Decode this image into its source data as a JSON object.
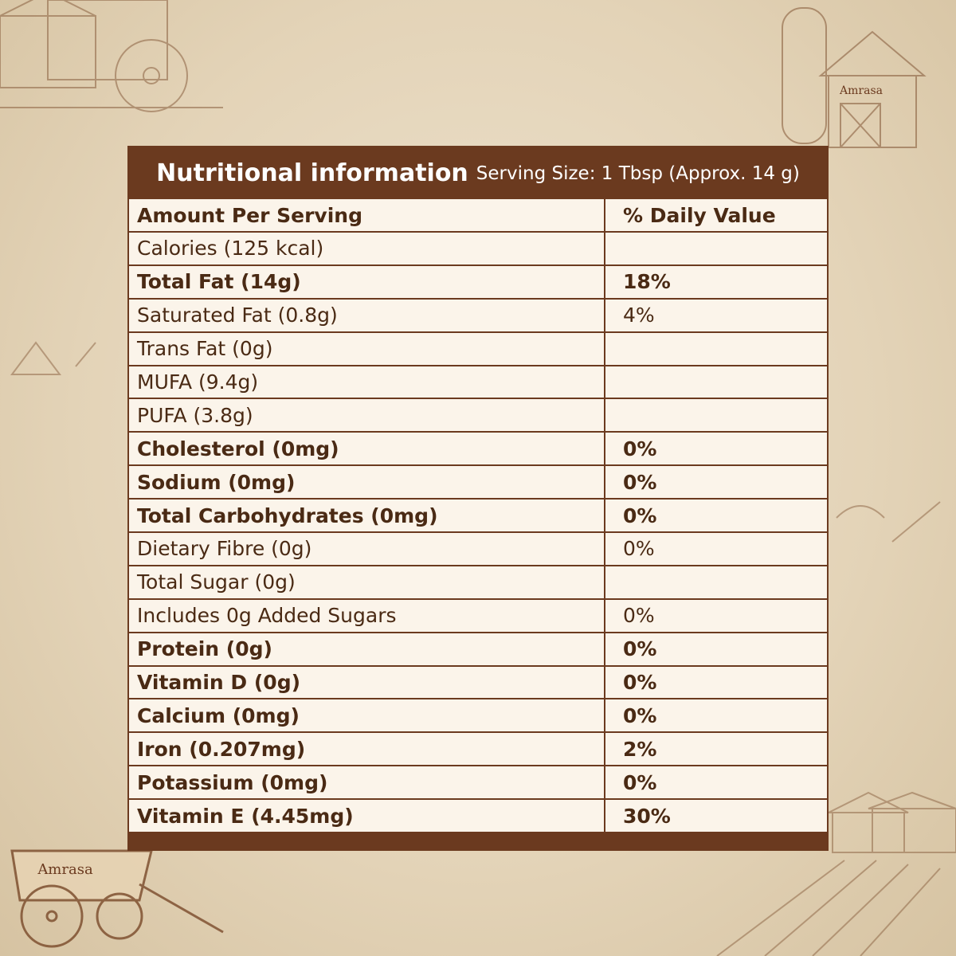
{
  "header": {
    "title": "Nutritional information",
    "serving_size": "Serving Size: 1 Tbsp (Approx. 14 g)"
  },
  "table": {
    "columns": [
      "Amount Per Serving",
      "% Daily Value"
    ],
    "rows": [
      {
        "name": "Calories (125 kcal)",
        "daily_value": null,
        "bold": false
      },
      {
        "name": "Total Fat (14g)",
        "daily_value": "18%",
        "bold": true
      },
      {
        "name": "Saturated Fat (0.8g)",
        "daily_value": "4%",
        "bold": false
      },
      {
        "name": "Trans Fat (0g)",
        "daily_value": null,
        "bold": false
      },
      {
        "name": "MUFA (9.4g)",
        "daily_value": null,
        "bold": false
      },
      {
        "name": "PUFA (3.8g)",
        "daily_value": null,
        "bold": false
      },
      {
        "name": "Cholesterol (0mg)",
        "daily_value": "0%",
        "bold": true
      },
      {
        "name": "Sodium (0mg)",
        "daily_value": "0%",
        "bold": true
      },
      {
        "name": "Total Carbohydrates (0mg)",
        "daily_value": "0%",
        "bold": true
      },
      {
        "name": "Dietary Fibre (0g)",
        "daily_value": "0%",
        "bold": false
      },
      {
        "name": "Total Sugar (0g)",
        "daily_value": null,
        "bold": false
      },
      {
        "name": "Includes 0g Added Sugars",
        "daily_value": "0%",
        "bold": false
      },
      {
        "name": "Protein (0g)",
        "daily_value": "0%",
        "bold": true
      },
      {
        "name": "Vitamin D (0g)",
        "daily_value": "0%",
        "bold": true
      },
      {
        "name": "Calcium (0mg)",
        "daily_value": "0%",
        "bold": true
      },
      {
        "name": "Iron (0.207mg)",
        "daily_value": "2%",
        "bold": true
      },
      {
        "name": "Potassium (0mg)",
        "daily_value": "0%",
        "bold": true
      },
      {
        "name": "Vitamin E (4.45mg)",
        "daily_value": "30%",
        "bold": true
      }
    ]
  },
  "decor": {
    "barn_label": "Amrasa",
    "cart_label": "Amrasa"
  }
}
